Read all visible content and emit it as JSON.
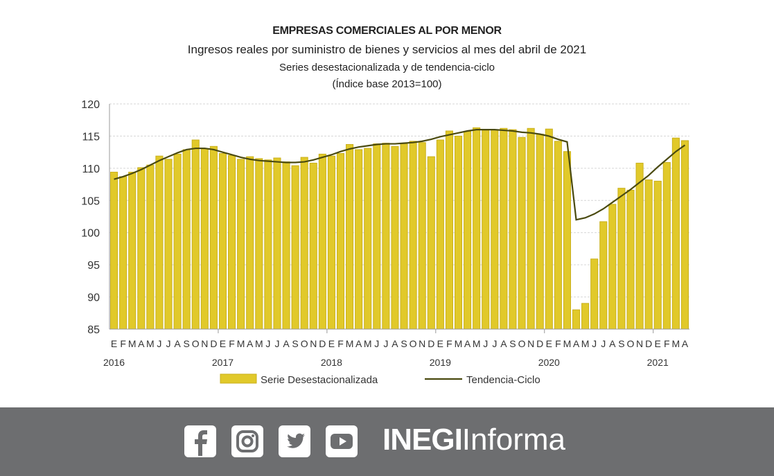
{
  "chart_data": {
    "type": "bar",
    "title": "EMPRESAS COMERCIALES AL POR MENOR",
    "subtitle": "Ingresos reales por suministro de bienes y servicios al mes del abril de 2021",
    "subtitle2": "Series desestacionalizada y de tendencia-ciclo",
    "subtitle3": "(Índice base 2013=100)",
    "ylim": [
      85,
      120
    ],
    "yticks": [
      85,
      90,
      95,
      100,
      105,
      110,
      115,
      120
    ],
    "month_labels": [
      "E",
      "F",
      "M",
      "A",
      "M",
      "J",
      "J",
      "A",
      "S",
      "O",
      "N",
      "D"
    ],
    "years": [
      "2016",
      "2017",
      "2018",
      "2019",
      "2020",
      "2021"
    ],
    "legend": "bottom",
    "series": [
      {
        "name": "Serie Desestacionalizada",
        "type": "bar",
        "color": "#e1c92a",
        "values": [
          109.4,
          108.7,
          109.4,
          110.1,
          110.5,
          111.9,
          111.4,
          112.2,
          112.9,
          114.4,
          113.0,
          113.4,
          112.3,
          112.0,
          111.4,
          111.8,
          111.5,
          111.3,
          111.6,
          111.0,
          110.4,
          111.7,
          110.8,
          112.2,
          111.9,
          112.3,
          113.7,
          112.9,
          113.1,
          113.8,
          113.9,
          113.4,
          113.8,
          114.2,
          114.0,
          111.8,
          114.4,
          115.8,
          115.0,
          115.7,
          116.3,
          115.9,
          116.0,
          116.2,
          116.0,
          114.8,
          116.2,
          115.3,
          116.1,
          114.2,
          112.6,
          88.0,
          89.0,
          95.9,
          101.7,
          104.4,
          106.9,
          106.6,
          110.8,
          108.2,
          108.0,
          110.9,
          114.7,
          114.3
        ]
      },
      {
        "name": "Tendencia-Ciclo",
        "type": "line",
        "color": "#4a4a10",
        "values": [
          108.3,
          108.7,
          109.2,
          109.8,
          110.5,
          111.2,
          111.8,
          112.4,
          112.9,
          113.1,
          113.1,
          112.9,
          112.5,
          112.1,
          111.7,
          111.4,
          111.2,
          111.1,
          111.0,
          110.9,
          110.9,
          111.0,
          111.3,
          111.7,
          112.1,
          112.6,
          113.0,
          113.3,
          113.5,
          113.7,
          113.8,
          113.8,
          113.9,
          114.0,
          114.2,
          114.5,
          114.9,
          115.2,
          115.5,
          115.8,
          116.0,
          116.0,
          116.0,
          115.9,
          115.8,
          115.6,
          115.5,
          115.3,
          115.0,
          114.5,
          114.1,
          102.0,
          102.3,
          102.9,
          103.7,
          104.7,
          105.7,
          106.7,
          107.8,
          108.9,
          110.2,
          111.4,
          112.6,
          113.6
        ]
      }
    ]
  },
  "footer": {
    "brand_bold": "INEGI",
    "brand_light": "Informa",
    "social": [
      "facebook",
      "instagram",
      "twitter",
      "youtube"
    ]
  }
}
